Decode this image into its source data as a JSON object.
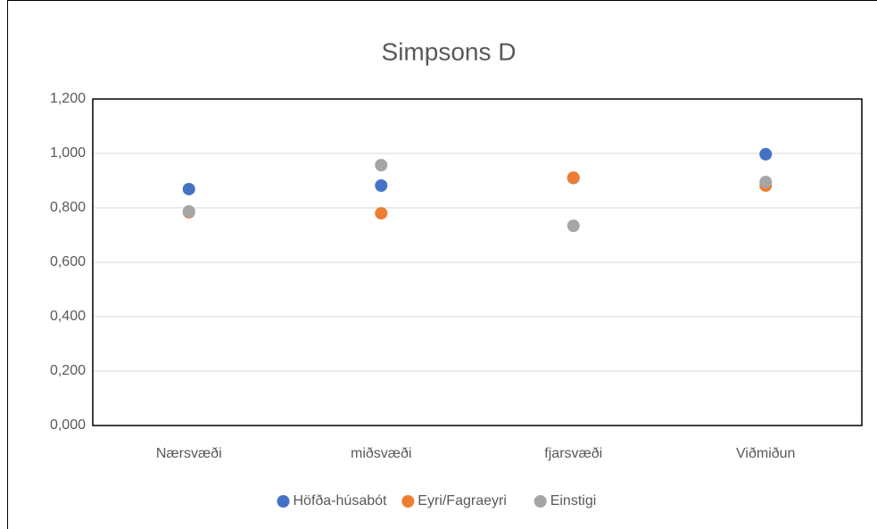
{
  "chart_data": {
    "type": "scatter",
    "title": "Simpsons D",
    "categories": [
      "Nærsvæði",
      "miðsvæði",
      "fjarsvæði",
      "Viðmiðun"
    ],
    "series": [
      {
        "name": "Höfða-húsabót",
        "color": "#4472c4",
        "values": [
          0.869,
          0.882,
          0.91,
          0.997
        ]
      },
      {
        "name": "Eyri/Fagraeyri",
        "color": "#ed7d31",
        "values": [
          0.784,
          0.78,
          0.911,
          0.882
        ]
      },
      {
        "name": "Einstigi",
        "color": "#a5a5a5",
        "values": [
          0.787,
          0.957,
          0.734,
          0.895
        ]
      }
    ],
    "ylim": [
      0,
      1.2
    ],
    "yticks": [
      {
        "value": 0,
        "label": "0,000"
      },
      {
        "value": 0.2,
        "label": "0,200"
      },
      {
        "value": 0.4,
        "label": "0,400"
      },
      {
        "value": 0.6,
        "label": "0,600"
      },
      {
        "value": 0.8,
        "label": "0,800"
      },
      {
        "value": 1,
        "label": "1,000"
      },
      {
        "value": 1.2,
        "label": "1,200"
      }
    ],
    "grid": true,
    "legend": "bottom"
  }
}
